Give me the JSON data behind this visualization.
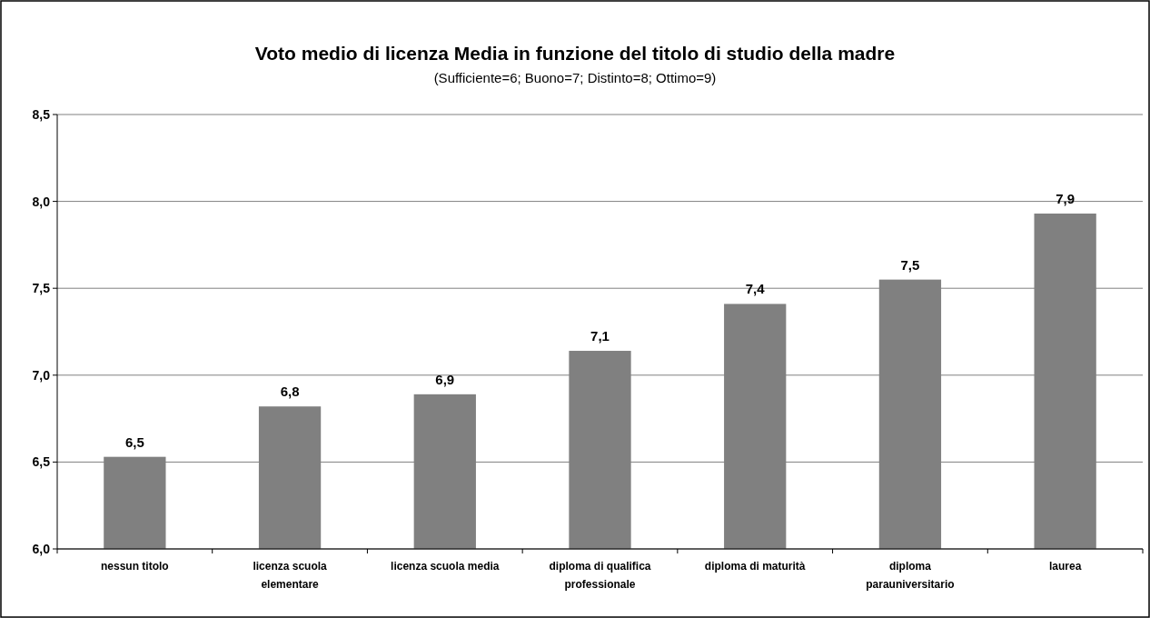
{
  "chart_data": {
    "type": "bar",
    "title": "Voto medio di licenza Media in funzione del titolo di studio della madre",
    "subtitle": "(Sufficiente=6; Buono=7; Distinto=8; Ottimo=9)",
    "categories": [
      "nessun titolo",
      "licenza scuola elementare",
      "licenza scuola media",
      "diploma di qualifica professionale",
      "diploma di maturità",
      "diploma parauniversitario",
      "laurea"
    ],
    "values": [
      6.53,
      6.82,
      6.89,
      7.14,
      7.41,
      7.55,
      7.93
    ],
    "value_labels": [
      "6,5",
      "6,8",
      "6,9",
      "7,1",
      "7,4",
      "7,5",
      "7,9"
    ],
    "color": "#808080",
    "ylim": [
      6,
      8.5
    ],
    "yticks": [
      {
        "value": 6,
        "label": "6,0"
      },
      {
        "value": 6.5,
        "label": "6,5"
      },
      {
        "value": 7,
        "label": "7,0"
      },
      {
        "value": 7.5,
        "label": "7,5"
      },
      {
        "value": 8,
        "label": "8,0"
      },
      {
        "value": 8.5,
        "label": "8,5"
      }
    ],
    "grid": "y"
  }
}
